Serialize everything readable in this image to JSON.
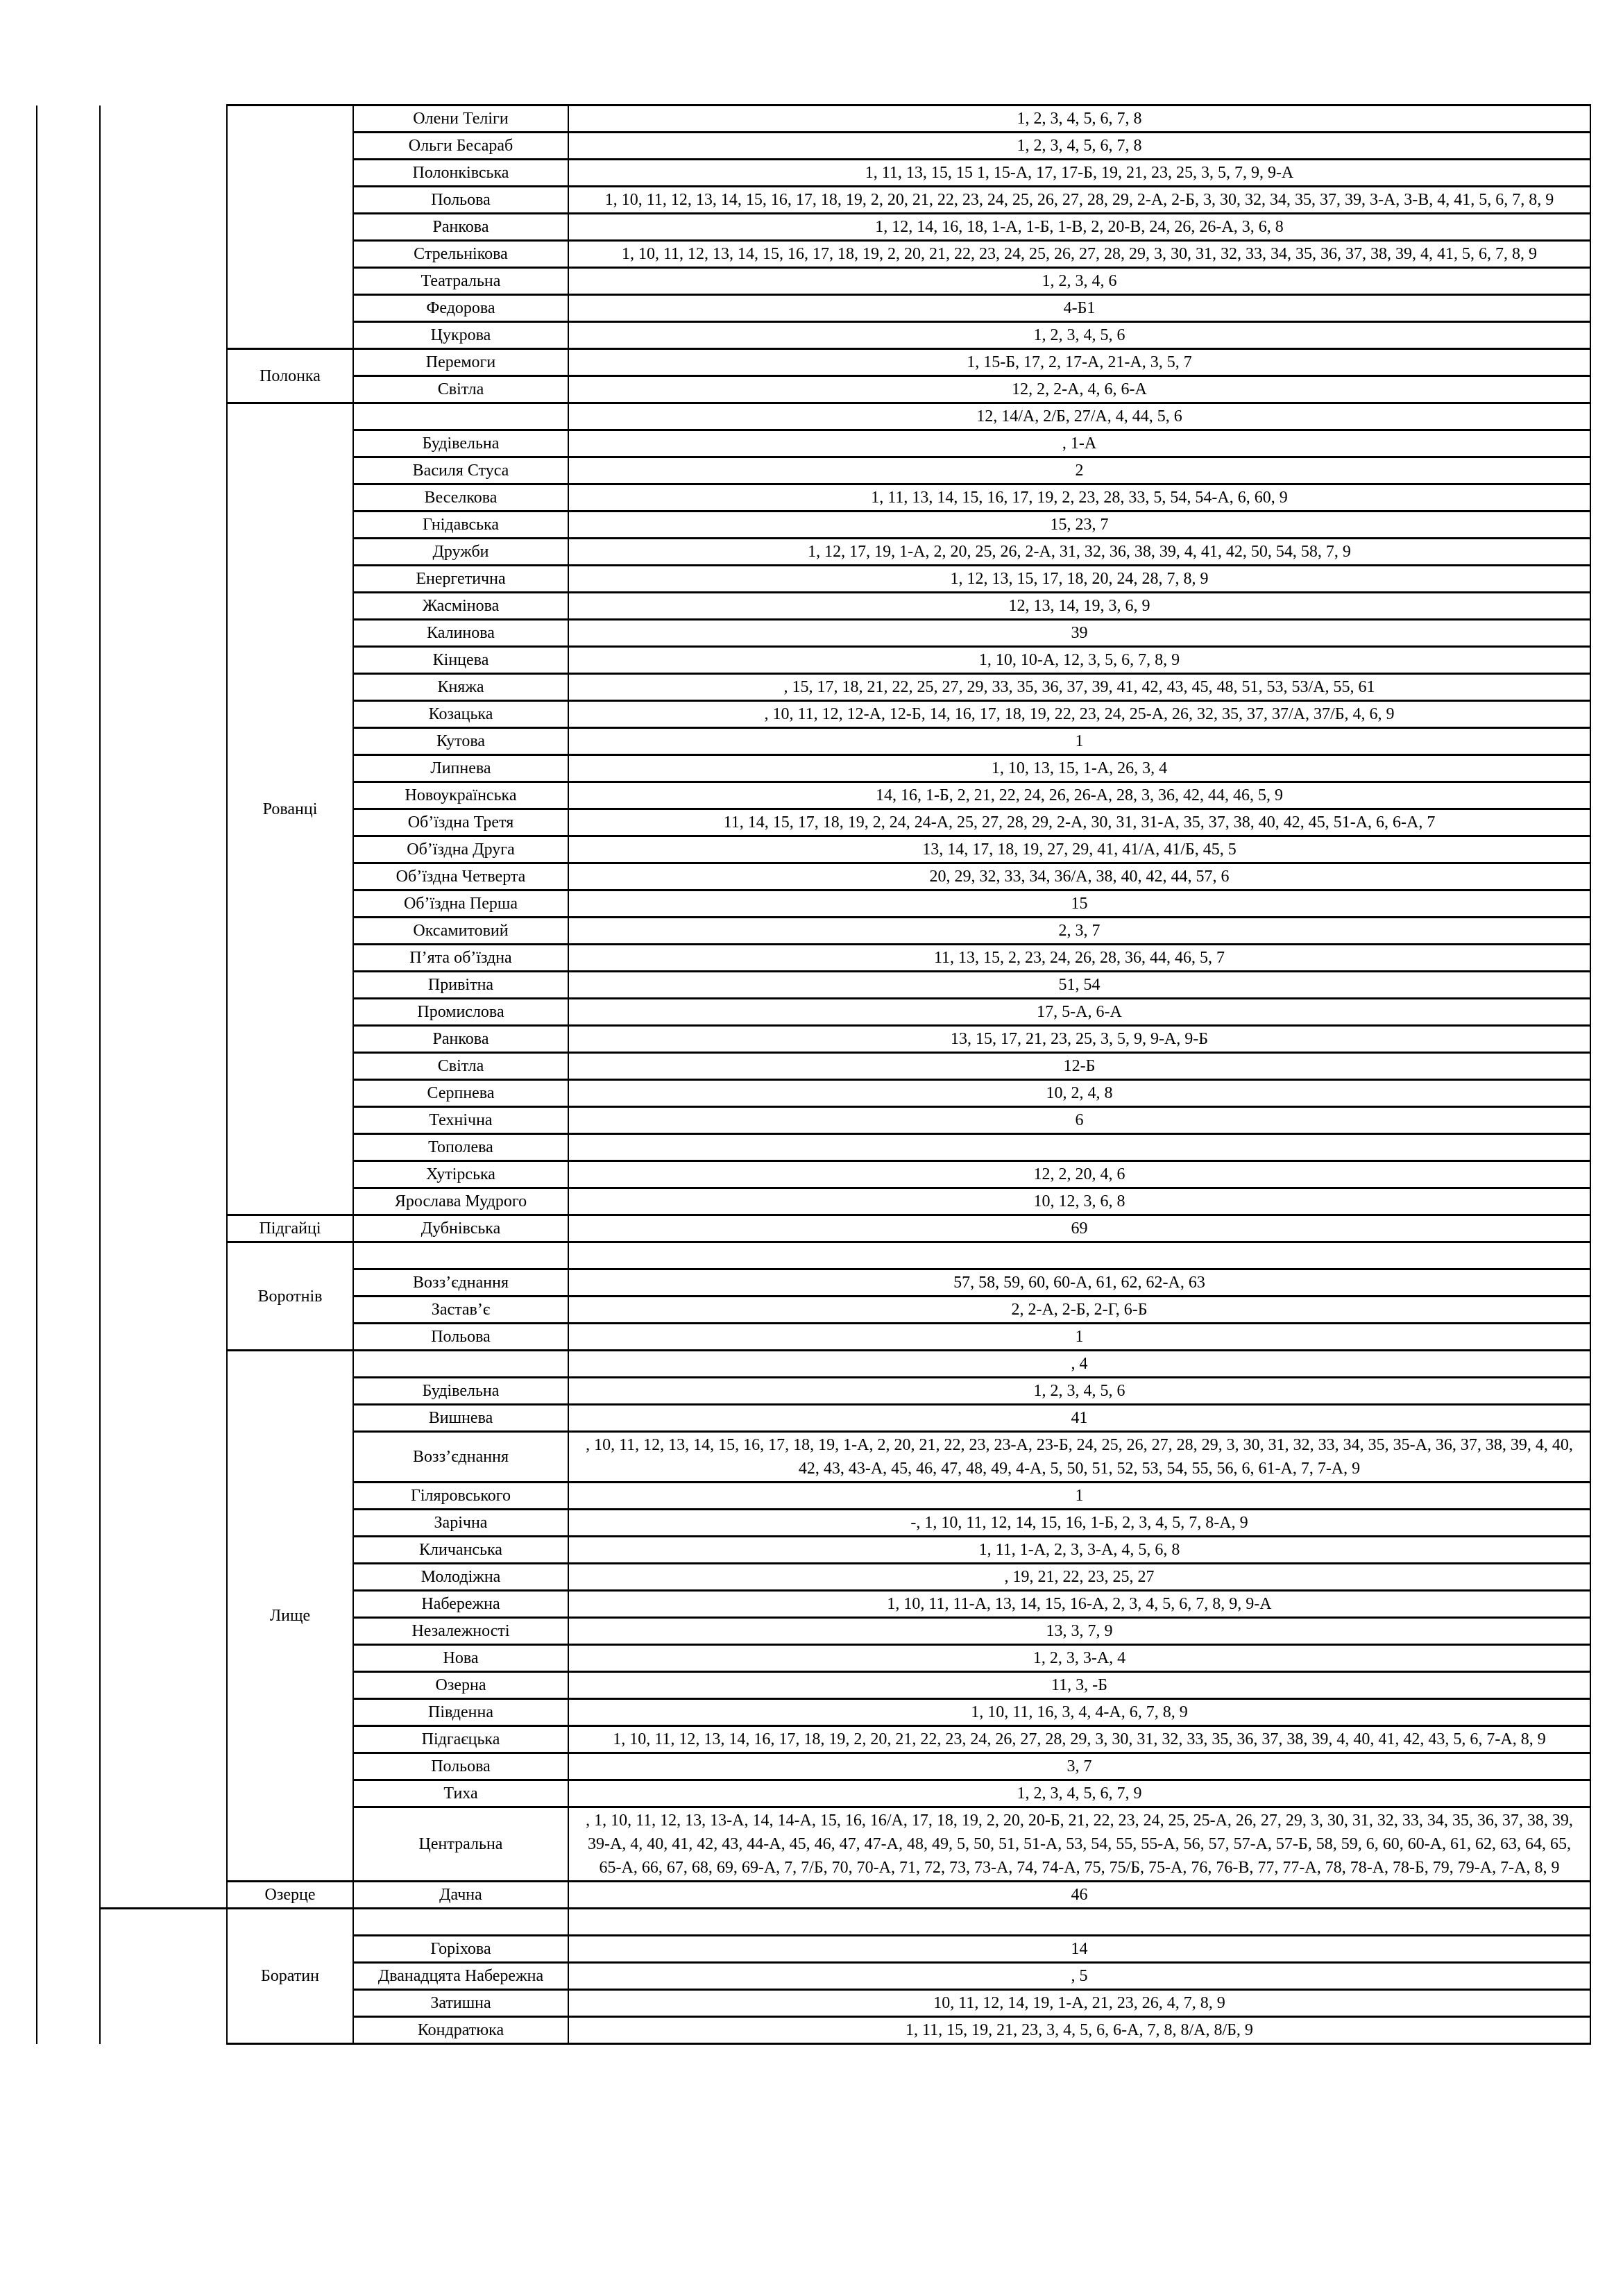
{
  "table": {
    "groups": [
      {
        "village": "",
        "rows": [
          [
            "Олени Теліги",
            "1, 2, 3, 4, 5, 6, 7, 8"
          ],
          [
            "Ольги Бесараб",
            "1, 2, 3, 4, 5, 6, 7, 8"
          ],
          [
            "Полонківська",
            "1, 11, 13, 15, 15  1, 15-А, 17, 17-Б, 19, 21, 23, 25, 3, 5, 7, 9, 9-А"
          ],
          [
            "Польова",
            "1, 10, 11, 12, 13, 14, 15, 16, 17, 18, 19, 2, 20, 21, 22, 23, 24, 25, 26, 27, 28, 29, 2-А, 2-Б, 3, 30, 32, 34, 35, 37, 39, 3-А, 3-В, 4, 41, 5, 6, 7, 8, 9"
          ],
          [
            "Ранкова",
            "1, 12, 14, 16, 18, 1-А, 1-Б, 1-В, 2, 20-В, 24, 26, 26-А, 3, 6, 8"
          ],
          [
            "Стрельнікова",
            "1, 10, 11, 12, 13, 14, 15, 16, 17, 18, 19, 2, 20, 21, 22, 23, 24, 25, 26, 27, 28, 29, 3, 30, 31, 32, 33, 34, 35, 36, 37, 38, 39, 4, 41, 5, 6, 7, 8, 9"
          ],
          [
            "Театральна",
            "1, 2, 3, 4, 6"
          ],
          [
            "Федорова",
            "4-Б1"
          ],
          [
            "Цукрова",
            "1, 2, 3, 4, 5, 6"
          ]
        ]
      },
      {
        "village": "Полонка",
        "rows": [
          [
            "Перемоги",
            "1, 15-Б, 17, 2, 17-А, 21-А, 3, 5, 7"
          ],
          [
            "Світла",
            "12, 2, 2-А, 4, 6, 6-А"
          ]
        ]
      },
      {
        "village": "Рованці",
        "rows": [
          [
            "",
            "12, 14/А, 2/Б, 27/А, 4, 44, 5, 6"
          ],
          [
            "Будівельна",
            ", 1-А"
          ],
          [
            "Василя Стуса",
            "2"
          ],
          [
            "Веселкова",
            "1, 11, 13, 14, 15, 16, 17, 19, 2, 23, 28, 33, 5, 54, 54-А, 6, 60, 9"
          ],
          [
            "Гнідавська",
            "15, 23, 7"
          ],
          [
            "Дружби",
            "1, 12, 17, 19, 1-А, 2, 20, 25, 26, 2-А, 31, 32, 36, 38, 39, 4, 41, 42, 50, 54, 58, 7, 9"
          ],
          [
            "Енергетична",
            "1, 12, 13, 15, 17, 18, 20, 24, 28, 7, 8, 9"
          ],
          [
            "Жасмінова",
            "12, 13, 14, 19, 3, 6, 9"
          ],
          [
            "Калинова",
            "39"
          ],
          [
            "Кінцева",
            "1, 10, 10-А, 12, 3, 5, 6, 7, 8, 9"
          ],
          [
            "Княжа",
            ", 15, 17, 18, 21, 22, 25, 27, 29, 33, 35, 36, 37, 39, 41, 42, 43, 45, 48, 51, 53, 53/А, 55, 61"
          ],
          [
            "Козацька",
            ", 10, 11, 12, 12-А, 12-Б, 14, 16, 17, 18, 19, 22, 23, 24, 25-А, 26, 32, 35, 37, 37/А, 37/Б, 4, 6, 9"
          ],
          [
            "Кутова",
            "1"
          ],
          [
            "Липнева",
            "1, 10, 13, 15, 1-А, 26, 3, 4"
          ],
          [
            "Новоукраїнська",
            "14, 16, 1-Б, 2, 21, 22, 24, 26, 26-А, 28, 3, 36, 42, 44, 46, 5, 9"
          ],
          [
            "Об’їздна Третя",
            "11, 14, 15, 17, 18, 19, 2, 24, 24-А, 25, 27, 28, 29, 2-А, 30, 31, 31-А, 35, 37, 38, 40, 42, 45, 51-А, 6, 6-А, 7"
          ],
          [
            "Об’їздна Друга",
            "13, 14, 17, 18, 19, 27, 29, 41, 41/А, 41/Б, 45, 5"
          ],
          [
            "Об’їздна Четверта",
            "20, 29, 32, 33, 34, 36/А, 38, 40, 42, 44, 57, 6"
          ],
          [
            "Об’їздна Перша",
            "15"
          ],
          [
            "Оксамитовий",
            "2, 3, 7"
          ],
          [
            "П’ята об’їздна",
            "11, 13, 15, 2, 23, 24, 26, 28, 36, 44, 46, 5, 7"
          ],
          [
            "Привітна",
            "51, 54"
          ],
          [
            "Промислова",
            "17, 5-А, 6-А"
          ],
          [
            "Ранкова",
            "13, 15, 17, 21, 23, 25, 3, 5, 9, 9-А, 9-Б"
          ],
          [
            "Світла",
            "12-Б"
          ],
          [
            "Серпнева",
            "10, 2, 4, 8"
          ],
          [
            "Технічна",
            "6"
          ],
          [
            "Тополева",
            ""
          ],
          [
            "Хутірська",
            "12, 2, 20, 4, 6"
          ],
          [
            "Ярослава Мудрого",
            "10, 12, 3, 6, 8"
          ]
        ]
      },
      {
        "village": "Підгайці",
        "rows": [
          [
            "Дубнівська",
            "69"
          ]
        ]
      },
      {
        "village": "Воротнів",
        "rows": [
          [
            "",
            ""
          ],
          [
            "Возз’єднання",
            "57, 58, 59, 60, 60-А, 61, 62, 62-А, 63"
          ],
          [
            "Застав’є",
            "2, 2-А, 2-Б, 2-Г, 6-Б"
          ],
          [
            "Польова",
            "1"
          ]
        ]
      },
      {
        "village": "Лище",
        "rows": [
          [
            "",
            ", 4"
          ],
          [
            "Будівельна",
            "1, 2, 3, 4, 5, 6"
          ],
          [
            "Вишнева",
            "41"
          ],
          [
            "Возз’єднання",
            ", 10, 11, 12, 13, 14, 15, 16, 17, 18, 19, 1-А, 2, 20, 21, 22, 23, 23-А, 23-Б, 24, 25, 26, 27, 28, 29, 3, 30, 31, 32, 33, 34, 35, 35-А, 36, 37, 38, 39, 4, 40, 42, 43, 43-А, 45, 46, 47, 48, 49, 4-А, 5, 50, 51, 52, 53, 54, 55, 56, 6, 61-А, 7, 7-А, 9"
          ],
          [
            "Гіляровського",
            "1"
          ],
          [
            "Зарічна",
            "-, 1, 10, 11, 12, 14, 15, 16, 1-Б, 2, 3, 4, 5, 7, 8-А, 9"
          ],
          [
            "Кличанська",
            "1, 11, 1-А, 2, 3, 3-А, 4, 5, 6, 8"
          ],
          [
            "Молодіжна",
            ", 19, 21, 22, 23, 25, 27"
          ],
          [
            "Набережна",
            "1, 10, 11, 11-А, 13, 14, 15, 16-А, 2, 3, 4, 5, 6, 7, 8, 9, 9-А"
          ],
          [
            "Незалежності",
            "13, 3, 7, 9"
          ],
          [
            "Нова",
            "1, 2, 3, 3-А, 4"
          ],
          [
            "Озерна",
            "11, 3, -Б"
          ],
          [
            "Південна",
            "1, 10, 11, 16, 3, 4, 4-А, 6, 7, 8, 9"
          ],
          [
            "Підгаєцька",
            "1, 10, 11, 12, 13, 14, 16, 17, 18, 19, 2, 20, 21, 22, 23, 24, 26, 27, 28, 29, 3, 30, 31, 32, 33, 35, 36, 37, 38, 39, 4, 40, 41, 42, 43, 5, 6, 7-А, 8, 9"
          ],
          [
            "Польова",
            "3, 7"
          ],
          [
            "Тиха",
            "1, 2, 3, 4, 5, 6, 7, 9"
          ],
          [
            "Центральна",
            ", 1, 10, 11, 12, 13, 13-А, 14, 14-А, 15, 16, 16/А, 17, 18, 19, 2, 20, 20-Б, 21, 22, 23, 24, 25, 25-А, 26, 27, 29, 3, 30, 31, 32, 33, 34, 35, 36, 37, 38, 39, 39-А, 4, 40, 41, 42, 43, 44-А, 45, 46, 47, 47-А, 48, 49, 5, 50, 51, 51-А, 53, 54, 55, 55-А, 56, 57, 57-А, 57-Б, 58, 59, 6, 60, 60-А, 61, 62, 63, 64, 65, 65-А, 66, 67, 68, 69, 69-А, 7, 7/Б, 70, 70-А, 71, 72, 73, 73-А, 74, 74-А, 75, 75/Б, 75-А, 76, 76-В, 77, 77-А, 78, 78-А, 78-Б, 79, 79-А, 7-А, 8, 9"
          ]
        ]
      },
      {
        "village": "Озерце",
        "rows": [
          [
            "Дачна",
            "46"
          ]
        ]
      },
      {
        "village": "Боратин",
        "rows": [
          [
            "",
            ""
          ],
          [
            "Горіхова",
            "14"
          ],
          [
            "Дванадцята Набережна",
            ", 5"
          ],
          [
            "Затишна",
            "10, 11, 12, 14, 19, 1-А, 21, 23, 26, 4, 7, 8, 9"
          ],
          [
            "Кондратюка",
            "1, 11, 15, 19, 21, 23, 3, 4, 5, 6, 6-А, 7, 8, 8/А, 8/Б, 9"
          ]
        ]
      }
    ]
  }
}
